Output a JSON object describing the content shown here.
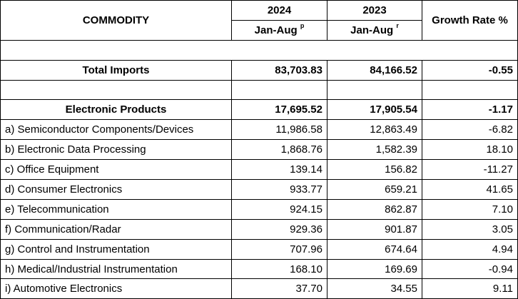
{
  "header": {
    "commodity": "COMMODITY",
    "year1": "2024",
    "year2": "2023",
    "period1": "Jan-Aug",
    "period1_sup": "p",
    "period2": "Jan-Aug",
    "period2_sup": "r",
    "growth": "Growth Rate %"
  },
  "total": {
    "label": "Total Imports",
    "v2024": "83,703.83",
    "v2023": "84,166.52",
    "growth": "-0.55"
  },
  "electronic": {
    "label": "Electronic Products",
    "v2024": "17,695.52",
    "v2023": "17,905.54",
    "growth": "-1.17"
  },
  "rows": [
    {
      "label": "a) Semiconductor Components/Devices",
      "v2024": "11,986.58",
      "v2023": "12,863.49",
      "growth": "-6.82"
    },
    {
      "label": "b) Electronic Data Processing",
      "v2024": "1,868.76",
      "v2023": "1,582.39",
      "growth": "18.10"
    },
    {
      "label": "c) Office Equipment",
      "v2024": "139.14",
      "v2023": "156.82",
      "growth": "-11.27"
    },
    {
      "label": "d) Consumer Electronics",
      "v2024": "933.77",
      "v2023": "659.21",
      "growth": "41.65"
    },
    {
      "label": "e) Telecommunication",
      "v2024": "924.15",
      "v2023": "862.87",
      "growth": "7.10"
    },
    {
      "label": "f) Communication/Radar",
      "v2024": "929.36",
      "v2023": "901.87",
      "growth": "3.05"
    },
    {
      "label": "g) Control and Instrumentation",
      "v2024": "707.96",
      "v2023": "674.64",
      "growth": "4.94"
    },
    {
      "label": "h) Medical/Industrial Instrumentation",
      "v2024": "168.10",
      "v2023": "169.69",
      "growth": "-0.94"
    },
    {
      "label": "i) Automotive Electronics",
      "v2024": "37.70",
      "v2023": "34.55",
      "growth": "9.11"
    }
  ]
}
